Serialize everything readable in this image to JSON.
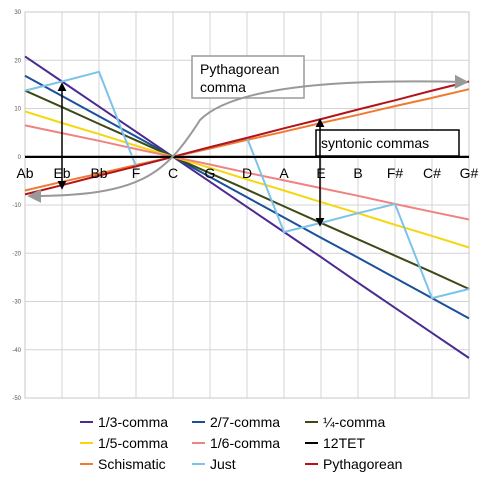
{
  "chart_data": {
    "type": "line",
    "categories": [
      "Ab",
      "Eb",
      "Bb",
      "F",
      "C",
      "G",
      "D",
      "A",
      "E",
      "B",
      "F#",
      "C#",
      "G#"
    ],
    "y_ticks": [
      "30",
      "20",
      "10",
      "0",
      "-10",
      "-20",
      "-30",
      "-40",
      "-50"
    ],
    "ylim": [
      -50,
      30
    ],
    "grid": true,
    "legend_position": "bottom",
    "series": [
      {
        "name": "1/3-comma",
        "color": "#4b2a91",
        "values": [
          20.8,
          15.6,
          10.4,
          5.2,
          0,
          -5.2,
          -10.4,
          -15.6,
          -20.8,
          -26.1,
          -31.3,
          -36.5,
          -41.7
        ]
      },
      {
        "name": "2/7-comma",
        "color": "#1a4f9a",
        "values": [
          16.8,
          12.6,
          8.4,
          4.2,
          0,
          -4.2,
          -8.4,
          -12.6,
          -16.8,
          -20.9,
          -25.1,
          -29.3,
          -33.5
        ]
      },
      {
        "name": "¼-comma",
        "color": "#3c4a18",
        "values": [
          13.7,
          10.3,
          6.8,
          3.4,
          0,
          -3.4,
          -6.8,
          -10.3,
          -13.7,
          -17.1,
          -20.5,
          -23.9,
          -27.4
        ]
      },
      {
        "name": "1/5-comma",
        "color": "#f5d60f",
        "values": [
          9.4,
          7.0,
          4.7,
          2.3,
          0,
          -2.3,
          -4.7,
          -7.0,
          -9.4,
          -11.7,
          -14.1,
          -16.4,
          -18.8
        ]
      },
      {
        "name": "1/6-comma",
        "color": "#f08282",
        "values": [
          6.5,
          4.9,
          3.3,
          1.6,
          0,
          -1.6,
          -3.3,
          -4.9,
          -6.5,
          -8.1,
          -9.8,
          -11.4,
          -13.0
        ]
      },
      {
        "name": "12TET",
        "color": "#000000",
        "values": [
          0,
          0,
          0,
          0,
          0,
          0,
          0,
          0,
          0,
          0,
          0,
          0,
          0
        ]
      },
      {
        "name": "Schismatic",
        "color": "#f07a30",
        "values": [
          -7.0,
          -5.2,
          -3.5,
          -1.7,
          0,
          1.7,
          3.5,
          5.2,
          7.0,
          8.7,
          10.5,
          12.2,
          14.0
        ]
      },
      {
        "name": "Just",
        "color": "#7cc3ea",
        "values": [
          13.7,
          15.6,
          17.6,
          -2.0,
          0,
          2.0,
          3.9,
          -15.6,
          -13.7,
          -11.7,
          -9.8,
          -29.3,
          -27.4
        ]
      },
      {
        "name": "Pythagorean",
        "color": "#b3141a",
        "values": [
          -7.8,
          -5.9,
          -3.9,
          -2.0,
          0,
          2.0,
          3.9,
          5.9,
          7.8,
          9.8,
          11.7,
          13.7,
          15.6
        ]
      }
    ],
    "annotations": {
      "pythagorean_comma_line1": "Pythagorean",
      "pythagorean_comma_line2": "comma",
      "syntonic_commas": "syntonic commas"
    }
  }
}
